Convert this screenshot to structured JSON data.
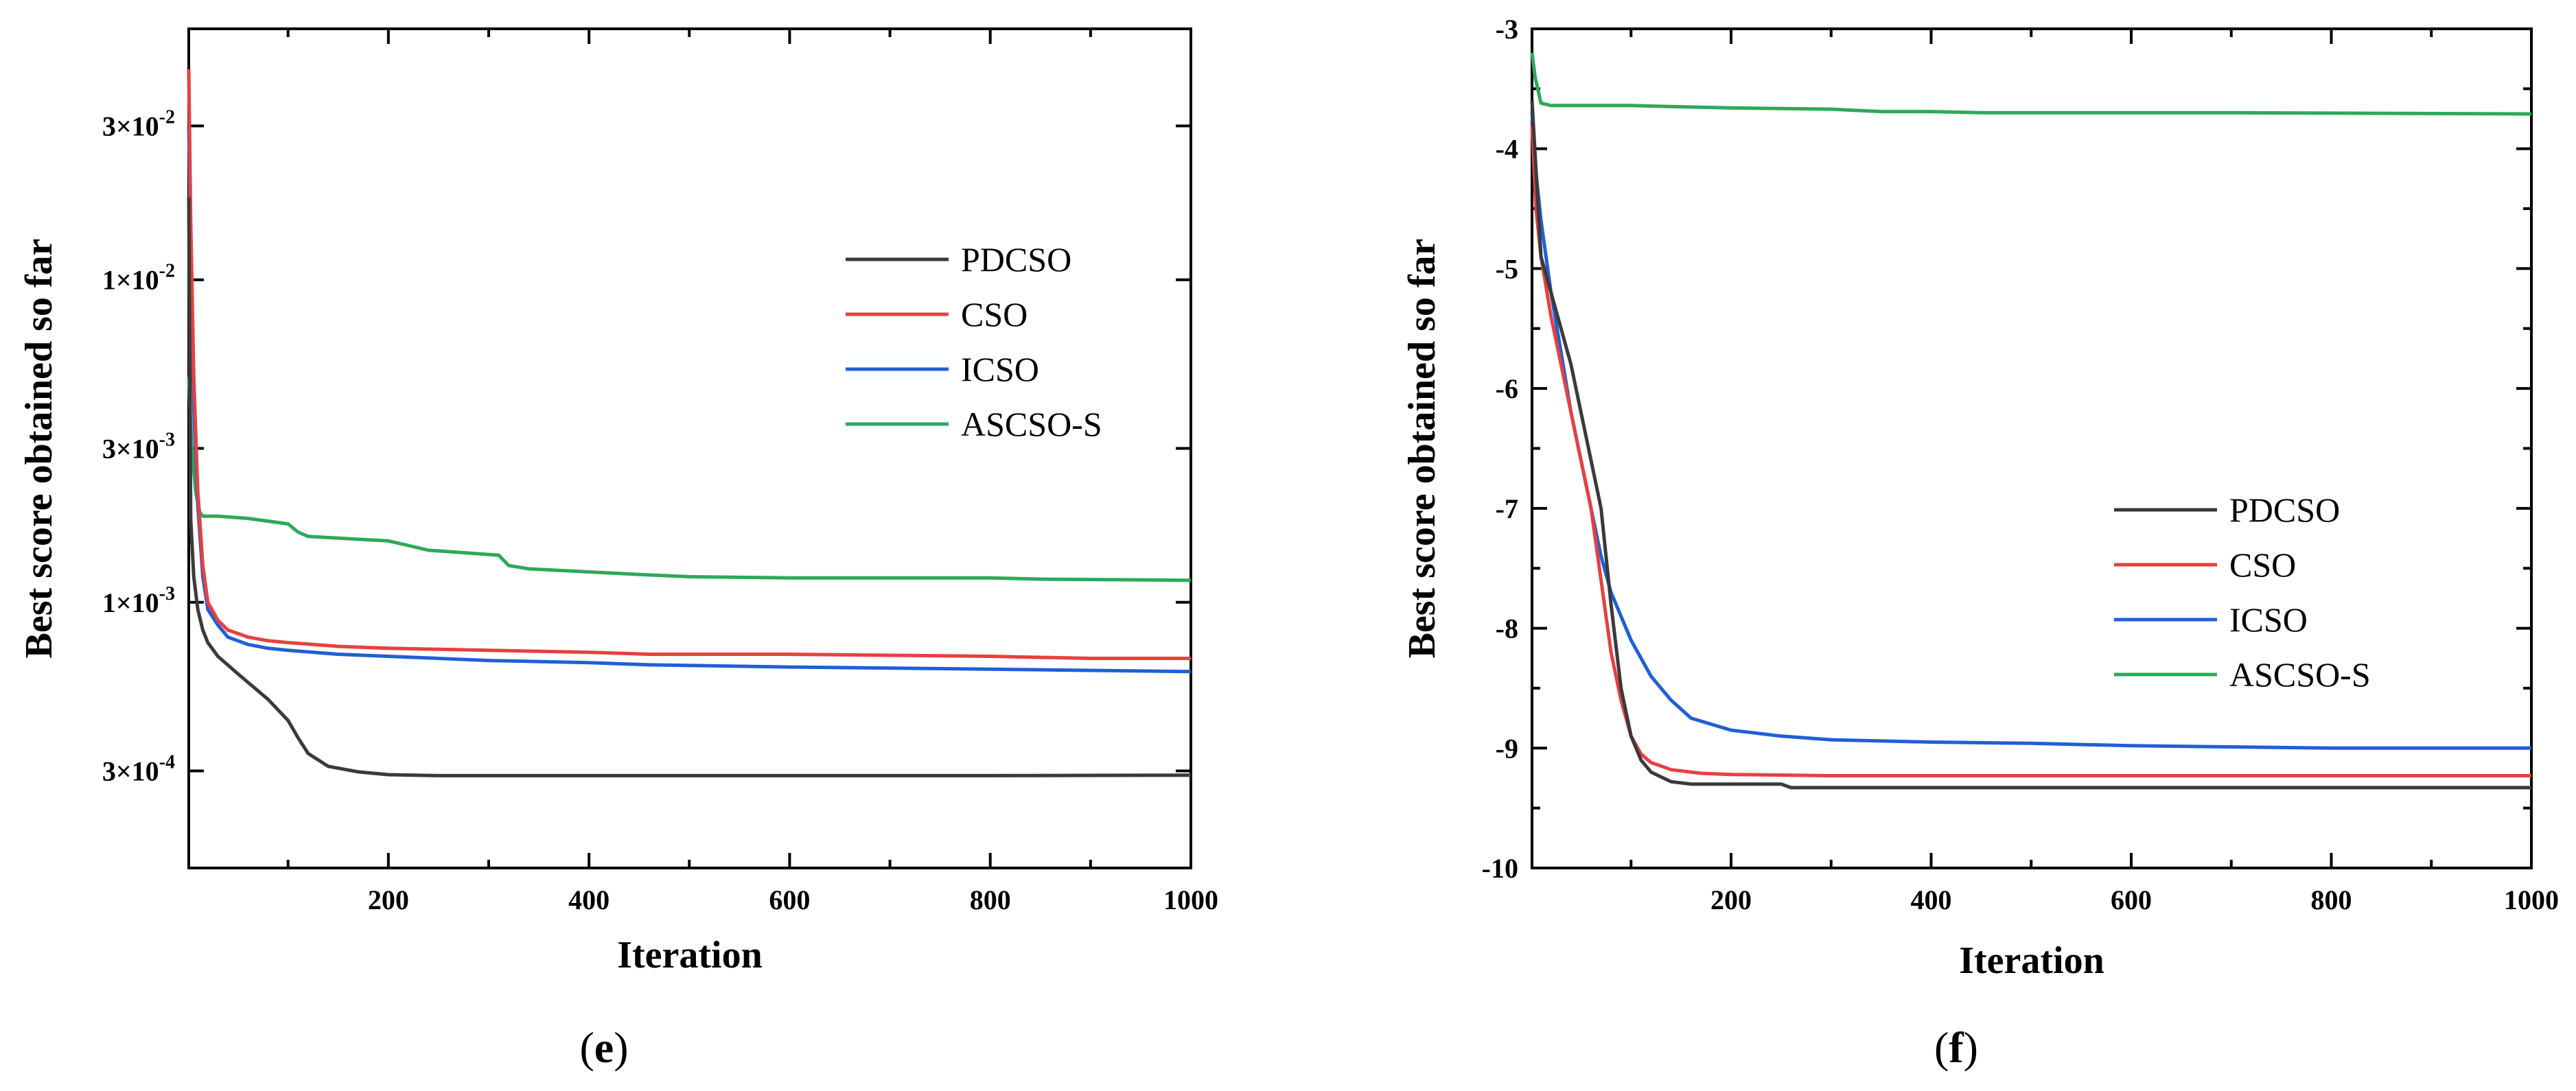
{
  "colors": {
    "PDCSO": "#3a3a3a",
    "CSO": "#e8403f",
    "ICSO": "#1f5fd6",
    "ASCSO-S": "#2ea85a"
  },
  "chart_data": [
    {
      "id": "e",
      "panel_label": "(e)",
      "panel_letter": "e",
      "type": "line",
      "xlabel": "Iteration",
      "ylabel": "Best score obtained so far",
      "yscale": "log",
      "xlim": [
        1,
        1000
      ],
      "ylim": [
        0.00015,
        0.06
      ],
      "xticks": [
        200,
        400,
        600,
        800,
        1000
      ],
      "xtick_labels": [
        "200",
        "400",
        "600",
        "800",
        "1000"
      ],
      "yticks": [
        0.0003,
        0.001,
        0.003,
        0.01,
        0.03
      ],
      "ytick_labels": [
        {
          "m": "3",
          "e": "-4"
        },
        {
          "m": "1",
          "e": "-3"
        },
        {
          "m": "3",
          "e": "-3"
        },
        {
          "m": "1",
          "e": "-2"
        },
        {
          "m": "3",
          "e": "-2"
        }
      ],
      "legend": {
        "position": "upper-right",
        "entries": [
          "PDCSO",
          "CSO",
          "ICSO",
          "ASCSO-S"
        ]
      },
      "series": [
        {
          "name": "PDCSO",
          "x": [
            1,
            3,
            6,
            10,
            15,
            20,
            30,
            50,
            80,
            100,
            110,
            120,
            140,
            170,
            200,
            250,
            400,
            600,
            800,
            1000
          ],
          "y": [
            0.018,
            0.0018,
            0.0012,
            0.00095,
            0.00082,
            0.00075,
            0.00068,
            0.0006,
            0.0005,
            0.00043,
            0.00038,
            0.00034,
            0.00031,
            0.000298,
            0.000292,
            0.00029,
            0.00029,
            0.00029,
            0.00029,
            0.000291
          ]
        },
        {
          "name": "CSO",
          "x": [
            1,
            3,
            6,
            10,
            15,
            20,
            30,
            40,
            50,
            60,
            80,
            100,
            150,
            200,
            300,
            400,
            460,
            600,
            800,
            900,
            1000
          ],
          "y": [
            0.045,
            0.015,
            0.005,
            0.0022,
            0.0013,
            0.001,
            0.00088,
            0.00082,
            0.0008,
            0.00078,
            0.00076,
            0.00075,
            0.00073,
            0.00072,
            0.00071,
            0.0007,
            0.00069,
            0.00069,
            0.00068,
            0.00067,
            0.00067
          ]
        },
        {
          "name": "ICSO",
          "x": [
            1,
            3,
            6,
            10,
            15,
            20,
            30,
            40,
            60,
            80,
            100,
            150,
            200,
            300,
            400,
            460,
            600,
            800,
            1000
          ],
          "y": [
            0.03,
            0.012,
            0.004,
            0.002,
            0.0012,
            0.00095,
            0.00085,
            0.00078,
            0.00074,
            0.00072,
            0.00071,
            0.00069,
            0.00068,
            0.00066,
            0.00065,
            0.00064,
            0.00063,
            0.00062,
            0.00061
          ]
        },
        {
          "name": "ASCSO-S",
          "x": [
            1,
            4,
            8,
            12,
            15,
            30,
            60,
            100,
            110,
            120,
            200,
            220,
            240,
            310,
            320,
            340,
            450,
            500,
            600,
            800,
            850,
            1000
          ],
          "y": [
            0.005,
            0.003,
            0.0022,
            0.0019,
            0.00185,
            0.00185,
            0.00182,
            0.00175,
            0.00165,
            0.0016,
            0.00155,
            0.0015,
            0.00145,
            0.0014,
            0.0013,
            0.00127,
            0.00122,
            0.0012,
            0.00119,
            0.00119,
            0.00118,
            0.00117
          ]
        }
      ]
    },
    {
      "id": "f",
      "panel_label": "(f)",
      "panel_letter": "f",
      "type": "line",
      "xlabel": "Iteration",
      "ylabel": "Best score obtained so far",
      "yscale": "linear",
      "xlim": [
        1,
        1000
      ],
      "ylim": [
        -10,
        -3
      ],
      "xticks": [
        200,
        400,
        600,
        800,
        1000
      ],
      "xtick_labels": [
        "200",
        "400",
        "600",
        "800",
        "1000"
      ],
      "yticks": [
        -10,
        -9,
        -8,
        -7,
        -6,
        -5,
        -4,
        -3
      ],
      "ytick_labels": [
        "-10",
        "-9",
        "-8",
        "-7",
        "-6",
        "-5",
        "-4",
        "-3"
      ],
      "legend": {
        "position": "lower-right",
        "entries": [
          "PDCSO",
          "CSO",
          "ICSO",
          "ASCSO-S"
        ]
      },
      "series": [
        {
          "name": "PDCSO",
          "x": [
            1,
            10,
            20,
            30,
            40,
            50,
            60,
            70,
            80,
            90,
            100,
            110,
            120,
            140,
            160,
            200,
            250,
            260,
            400,
            600,
            800,
            1000
          ],
          "y": [
            -3.6,
            -4.9,
            -5.2,
            -5.5,
            -5.8,
            -6.2,
            -6.6,
            -7.0,
            -7.8,
            -8.5,
            -8.9,
            -9.1,
            -9.2,
            -9.28,
            -9.3,
            -9.3,
            -9.3,
            -9.33,
            -9.33,
            -9.33,
            -9.33,
            -9.33
          ]
        },
        {
          "name": "CSO",
          "x": [
            1,
            5,
            10,
            20,
            30,
            40,
            50,
            60,
            70,
            80,
            90,
            100,
            110,
            120,
            140,
            170,
            200,
            300,
            500,
            700,
            1000
          ],
          "y": [
            -3.8,
            -4.5,
            -4.9,
            -5.4,
            -5.8,
            -6.2,
            -6.6,
            -7.0,
            -7.6,
            -8.2,
            -8.6,
            -8.9,
            -9.05,
            -9.12,
            -9.18,
            -9.21,
            -9.22,
            -9.23,
            -9.23,
            -9.23,
            -9.23
          ]
        },
        {
          "name": "ICSO",
          "x": [
            1,
            5,
            10,
            20,
            30,
            40,
            50,
            60,
            70,
            80,
            90,
            100,
            120,
            140,
            160,
            200,
            250,
            300,
            400,
            500,
            600,
            800,
            1000
          ],
          "y": [
            -3.7,
            -4.2,
            -4.6,
            -5.2,
            -5.7,
            -6.2,
            -6.6,
            -7.0,
            -7.4,
            -7.7,
            -7.9,
            -8.1,
            -8.4,
            -8.6,
            -8.75,
            -8.85,
            -8.9,
            -8.93,
            -8.95,
            -8.96,
            -8.98,
            -9.0,
            -9.0
          ]
        },
        {
          "name": "ASCSO-S",
          "x": [
            1,
            4,
            10,
            20,
            60,
            100,
            150,
            200,
            300,
            350,
            400,
            450,
            500,
            700,
            1000
          ],
          "y": [
            -3.2,
            -3.4,
            -3.62,
            -3.64,
            -3.64,
            -3.64,
            -3.65,
            -3.66,
            -3.67,
            -3.69,
            -3.69,
            -3.7,
            -3.7,
            -3.7,
            -3.71
          ]
        }
      ]
    }
  ]
}
